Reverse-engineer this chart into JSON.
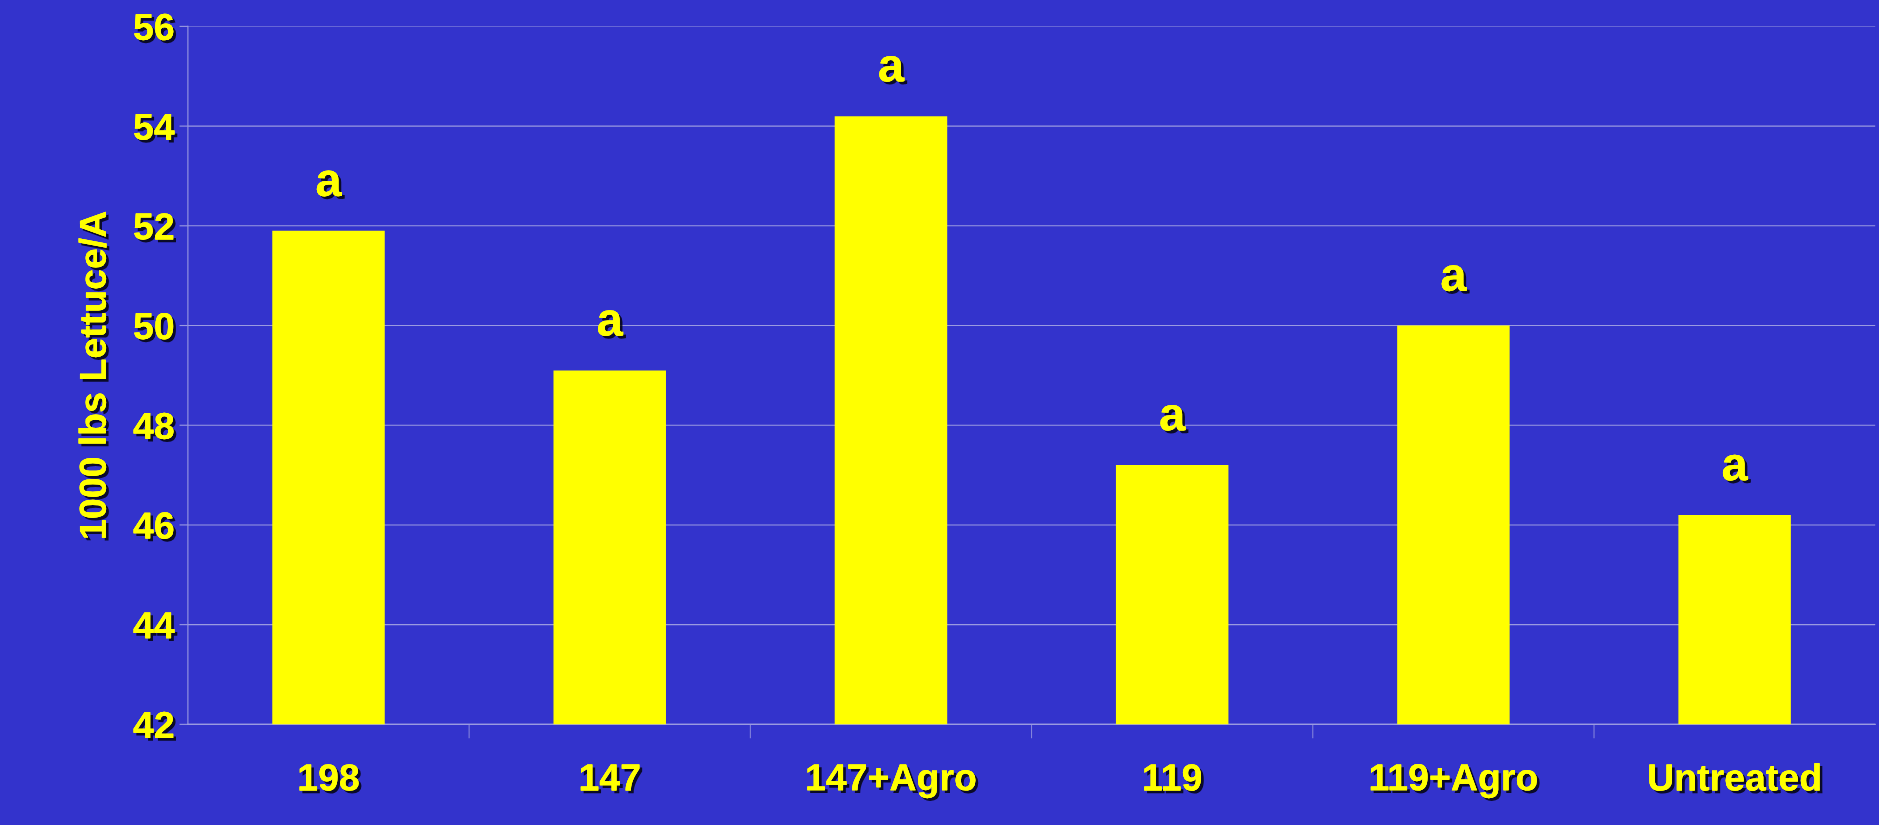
{
  "chart_data": {
    "type": "bar",
    "ylabel": "1000 lbs Lettuce/A",
    "categories": [
      "198",
      "147",
      "147+Agro",
      "119",
      "119+Agro",
      "Untreated"
    ],
    "values": [
      51.9,
      49.1,
      54.2,
      47.2,
      50.0,
      46.2
    ],
    "color": "#ffff00",
    "ylim": [
      42,
      56
    ],
    "yticks": [
      42,
      44,
      46,
      48,
      50,
      52,
      54,
      56
    ],
    "grid": "y",
    "annotations": [
      {
        "text": "a",
        "x": "198",
        "y": 51.9
      },
      {
        "text": "a",
        "x": "147",
        "y": 49.1
      },
      {
        "text": "a",
        "x": "147+Agro",
        "y": 54.2
      },
      {
        "text": "a",
        "x": "119",
        "y": 47.2
      },
      {
        "text": "a",
        "x": "119+Agro",
        "y": 50.0
      },
      {
        "text": "a",
        "x": "Untreated",
        "y": 46.2
      }
    ]
  }
}
